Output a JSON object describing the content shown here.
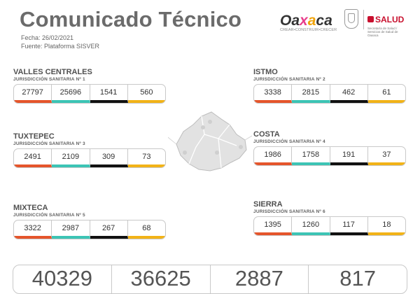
{
  "header": {
    "title": "Comunicado Técnico",
    "fecha": "Fecha: 26/02/2021",
    "fuente": "Fuente: Plataforma SISVER"
  },
  "logos": {
    "oaxaca_word": "Oaxaca",
    "oaxaca_tagline": "CREAR•CONSTRUIR•CRECER",
    "salud": "SALUD",
    "salud_sub": "Secretaría de Salud / Servicios de Salud de Oaxaca"
  },
  "regions": [
    {
      "name": "VALLES CENTRALES",
      "jurisdiccion": "JURISDICCIÓN SANITARIA Nº 1",
      "values": [
        "27797",
        "25696",
        "1541",
        "560"
      ]
    },
    {
      "name": "ISTMO",
      "jurisdiccion": "JURISDICCIÓN SANITARIA Nº 2",
      "values": [
        "3338",
        "2815",
        "462",
        "61"
      ]
    },
    {
      "name": "TUXTEPEC",
      "jurisdiccion": "JURISDICCIÓN SANITARIA Nº 3",
      "values": [
        "2491",
        "2109",
        "309",
        "73"
      ]
    },
    {
      "name": "COSTA",
      "jurisdiccion": "JURISDICCIÓN SANITARIA Nº 4",
      "values": [
        "1986",
        "1758",
        "191",
        "37"
      ]
    },
    {
      "name": "MIXTECA",
      "jurisdiccion": "JURISDICCIÓN SANITARIA Nº 5",
      "values": [
        "3322",
        "2987",
        "267",
        "68"
      ]
    },
    {
      "name": "SIERRA",
      "jurisdiccion": "JURISDICCIÓN SANITARIA Nº 6",
      "values": [
        "1395",
        "1260",
        "117",
        "18"
      ]
    }
  ],
  "totals": [
    "40329",
    "36625",
    "2887",
    "817"
  ],
  "colors": {
    "confirmados": "#e5552b",
    "recuperados": "#3cc4b5",
    "activos": "#111111",
    "defunciones": "#f2b317"
  }
}
